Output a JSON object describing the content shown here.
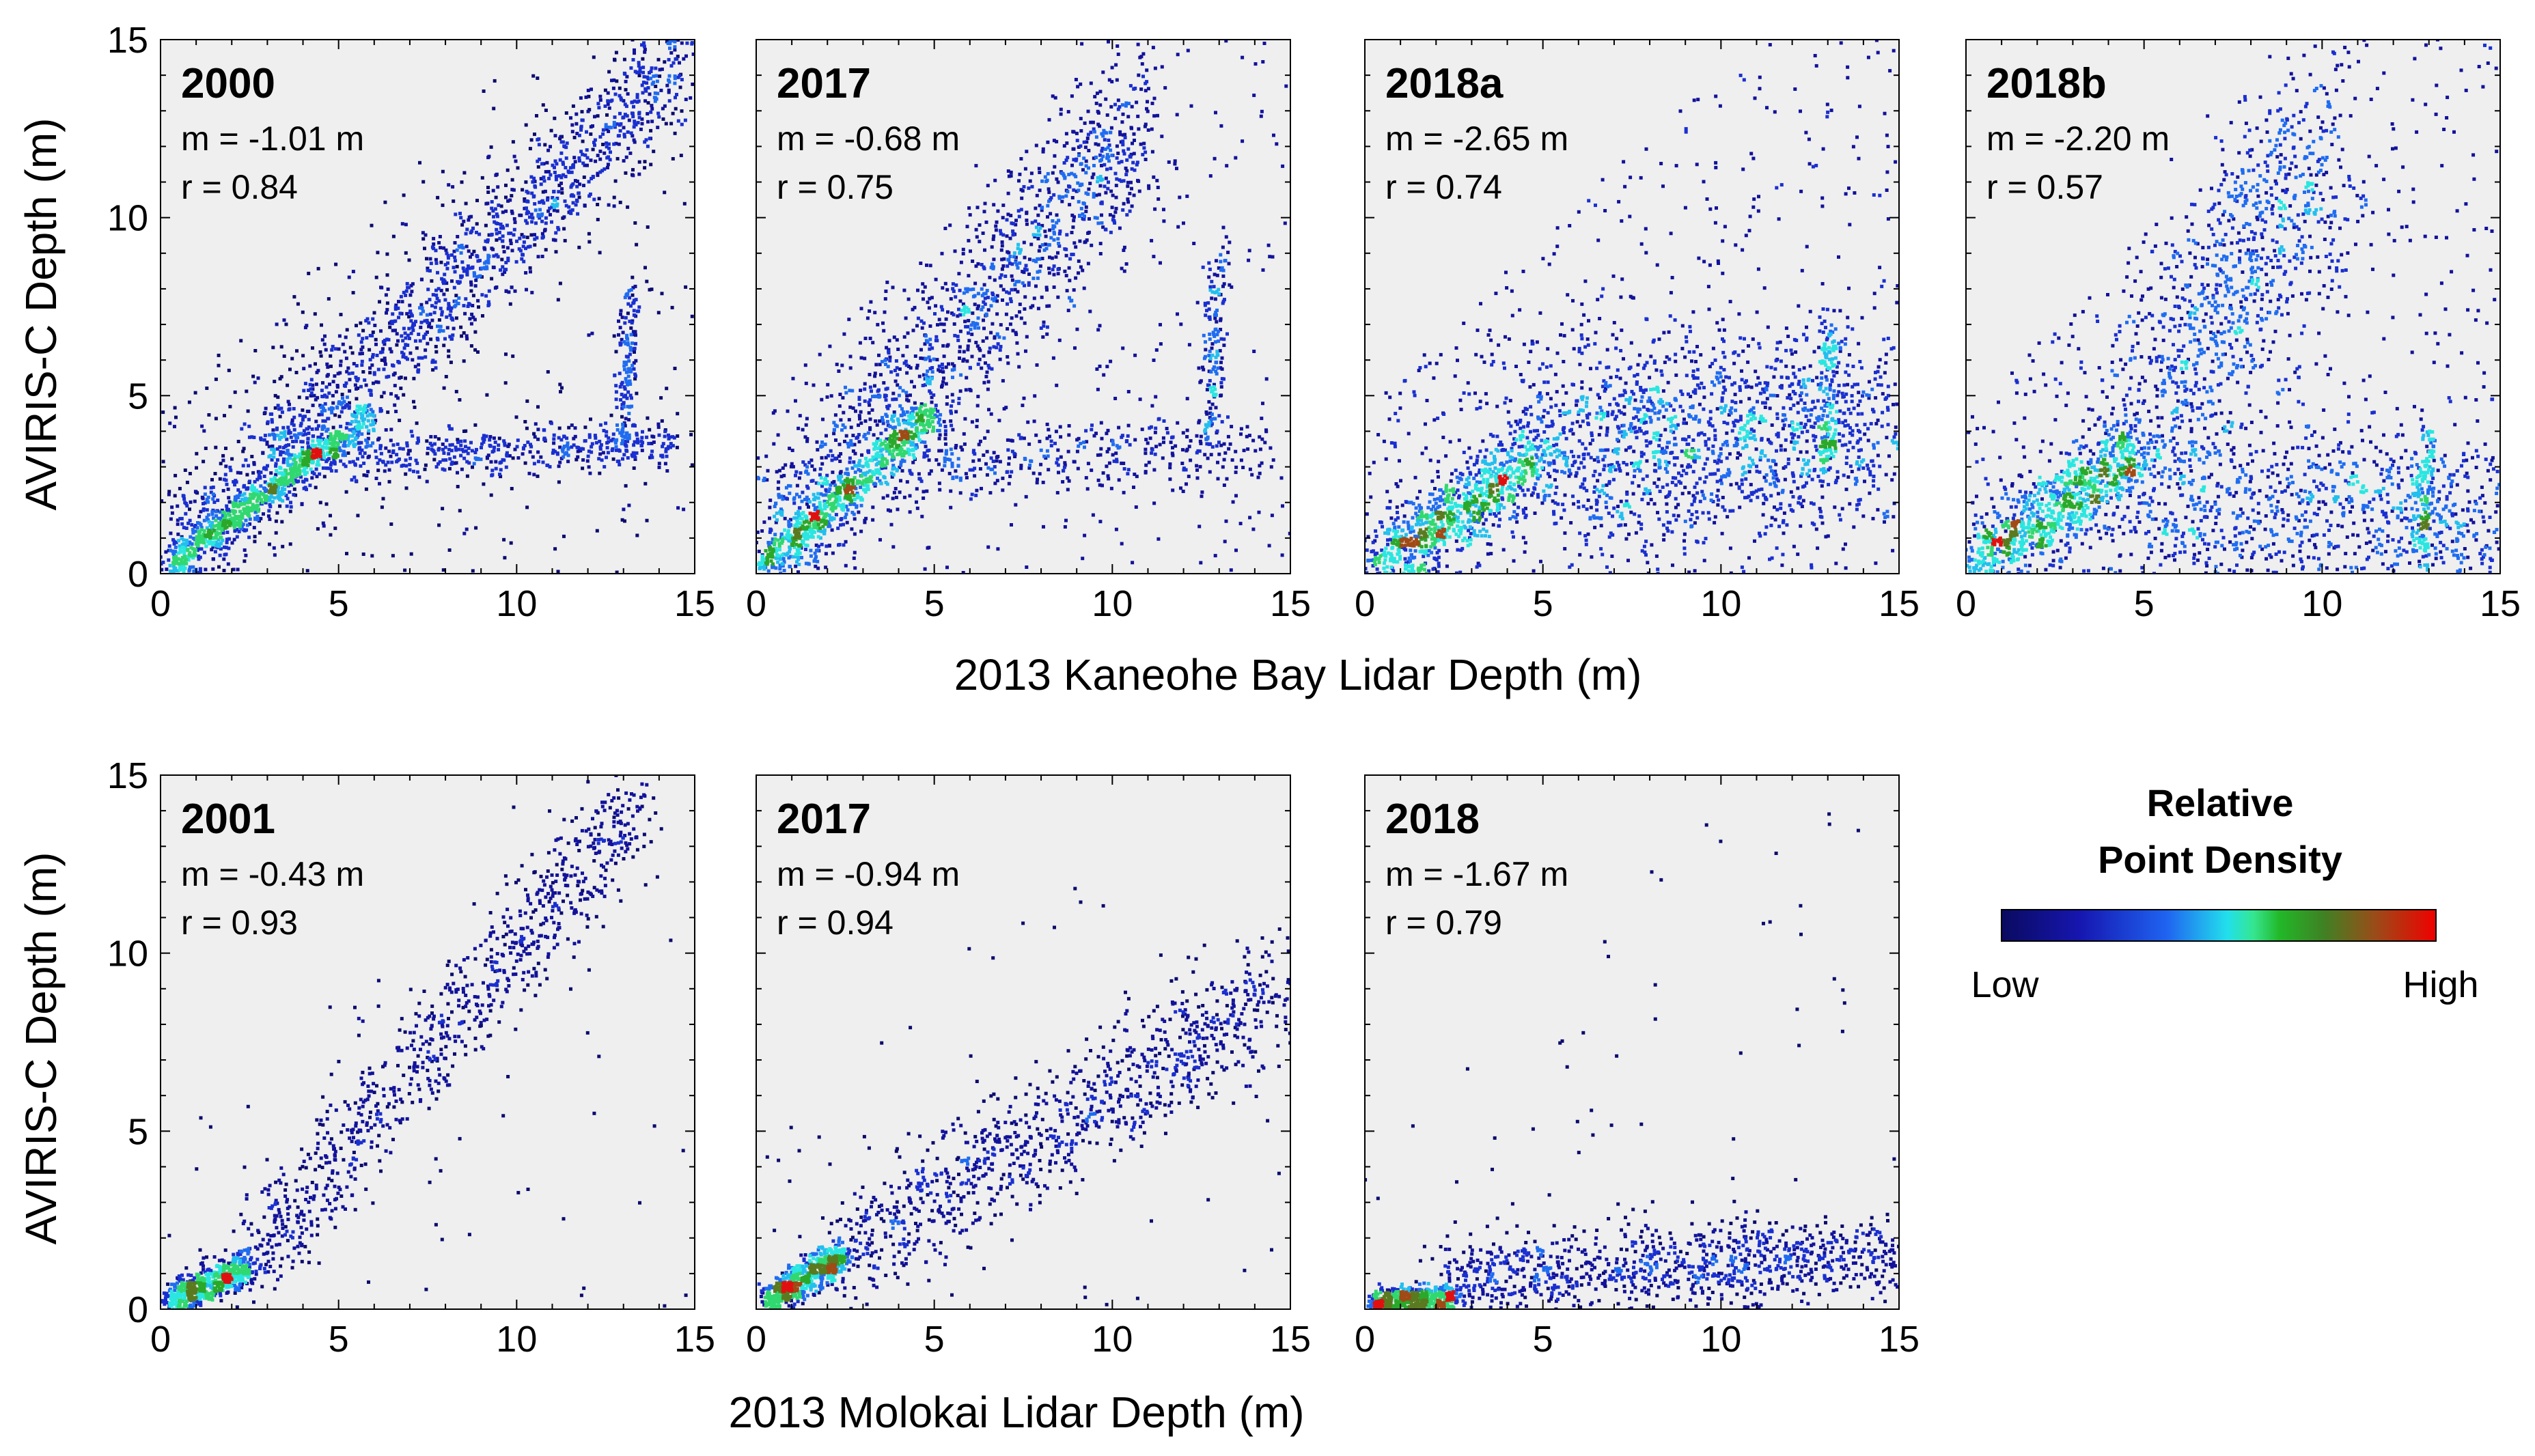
{
  "chart_data": [
    {
      "type": "scatter",
      "group": "Kaneohe Bay",
      "title": "2000",
      "m_text": "m = -1.01 m",
      "r_text": "r = 0.84",
      "xlabel": "2013 Kaneohe Bay Lidar Depth (m)",
      "ylabel": "AVIRIS-C Depth (m)",
      "xlim": [
        0,
        15
      ],
      "ylim": [
        0,
        15
      ],
      "xticks": [
        0,
        5,
        10,
        15
      ],
      "yticks": [
        0,
        5,
        10,
        15
      ],
      "clusters": [
        {
          "x0": 0.2,
          "y0": 0.2,
          "x1": 14.8,
          "y1": 14.6,
          "spread": 0.9,
          "count": 1700
        },
        {
          "x0": 3,
          "y0": 3.3,
          "x1": 14.5,
          "y1": 3.6,
          "spread": 0.35,
          "count": 500
        },
        {
          "x0": 13,
          "y0": 3.5,
          "x1": 13.2,
          "y1": 8,
          "spread": 0.3,
          "count": 160
        },
        {
          "x0": 0.2,
          "y0": 0.2,
          "x1": 6,
          "y1": 4.5,
          "spread": 0.25,
          "count": 700
        }
      ],
      "background_noise": 300
    },
    {
      "type": "scatter",
      "group": "Kaneohe Bay",
      "title": "2017",
      "m_text": "m = -0.68 m",
      "r_text": "r = 0.75",
      "xlim": [
        0,
        15
      ],
      "ylim": [
        0,
        15
      ],
      "xticks": [
        0,
        5,
        10,
        15
      ],
      "yticks": [
        0,
        5,
        10,
        15
      ],
      "clusters": [
        {
          "x0": 0.2,
          "y0": 0.2,
          "x1": 11,
          "y1": 13,
          "spread": 1.2,
          "count": 1500
        },
        {
          "x0": 4,
          "y0": 3.2,
          "x1": 14.5,
          "y1": 3.5,
          "spread": 0.5,
          "count": 350
        },
        {
          "x0": 12.8,
          "y0": 4,
          "x1": 13,
          "y1": 9,
          "spread": 0.35,
          "count": 150
        },
        {
          "x0": 0.2,
          "y0": 0.2,
          "x1": 5,
          "y1": 4.5,
          "spread": 0.3,
          "count": 600
        }
      ],
      "background_noise": 350
    },
    {
      "type": "scatter",
      "group": "Kaneohe Bay",
      "title": "2018a",
      "m_text": "m = -2.65 m",
      "r_text": "r = 0.74",
      "xlim": [
        0,
        15
      ],
      "ylim": [
        0,
        15
      ],
      "xticks": [
        0,
        5,
        10,
        15
      ],
      "yticks": [
        0,
        5,
        10,
        15
      ],
      "clusters": [
        {
          "x0": 0.3,
          "y0": 0.2,
          "x1": 5,
          "y1": 3.5,
          "spread": 0.6,
          "count": 900
        },
        {
          "x0": 5,
          "y0": 3.5,
          "x1": 14.5,
          "y1": 4,
          "spread": 1.6,
          "count": 1500
        },
        {
          "x0": 13,
          "y0": 3,
          "x1": 13,
          "y1": 7,
          "spread": 0.3,
          "count": 120
        }
      ],
      "background_noise": 450
    },
    {
      "type": "scatter",
      "group": "Kaneohe Bay",
      "title": "2018b",
      "m_text": "m = -2.20 m",
      "r_text": "r = 0.57",
      "xlim": [
        0,
        15
      ],
      "ylim": [
        0,
        15
      ],
      "xticks": [
        0,
        5,
        10,
        15
      ],
      "yticks": [
        0,
        5,
        10,
        15
      ],
      "clusters": [
        {
          "x0": 0.2,
          "y0": 0.2,
          "x1": 5,
          "y1": 3.5,
          "spread": 0.6,
          "count": 900
        },
        {
          "x0": 5,
          "y0": 4,
          "x1": 10,
          "y1": 12,
          "spread": 1.8,
          "count": 900
        },
        {
          "x0": 5,
          "y0": 2,
          "x1": 15,
          "y1": 1.5,
          "spread": 1.3,
          "count": 900
        },
        {
          "x0": 12.8,
          "y0": 0.5,
          "x1": 13,
          "y1": 4,
          "spread": 0.3,
          "count": 120
        }
      ],
      "background_noise": 450
    },
    {
      "type": "scatter",
      "group": "Molokai",
      "title": "2001",
      "m_text": "m = -0.43 m",
      "r_text": "r = 0.93",
      "xlabel": "2013 Molokai Lidar Depth (m)",
      "ylabel": "AVIRIS-C Depth (m)",
      "xlim": [
        0,
        15
      ],
      "ylim": [
        0,
        15
      ],
      "xticks": [
        0,
        5,
        10,
        15
      ],
      "yticks": [
        0,
        5,
        10,
        15
      ],
      "clusters": [
        {
          "x0": 0.2,
          "y0": 0.2,
          "x1": 2.5,
          "y1": 1.2,
          "spread": 0.25,
          "count": 600
        },
        {
          "x0": 2.5,
          "y0": 1.2,
          "x1": 13.5,
          "y1": 14.5,
          "spread": 0.8,
          "count": 900
        }
      ],
      "background_noise": 60
    },
    {
      "type": "scatter",
      "group": "Molokai",
      "title": "2017",
      "m_text": "m = -0.94 m",
      "r_text": "r = 0.94",
      "xlim": [
        0,
        15
      ],
      "ylim": [
        0,
        15
      ],
      "xticks": [
        0,
        5,
        10,
        15
      ],
      "yticks": [
        0,
        5,
        10,
        15
      ],
      "clusters": [
        {
          "x0": 0.2,
          "y0": 0.2,
          "x1": 2.5,
          "y1": 1.5,
          "spread": 0.25,
          "count": 600
        },
        {
          "x0": 2.5,
          "y0": 1.5,
          "x1": 15,
          "y1": 9,
          "spread": 0.9,
          "count": 1000
        }
      ],
      "background_noise": 60
    },
    {
      "type": "scatter",
      "group": "Molokai",
      "title": "2018",
      "m_text": "m = -1.67 m",
      "r_text": "r = 0.79",
      "xlim": [
        0,
        15
      ],
      "ylim": [
        0,
        15
      ],
      "xticks": [
        0,
        5,
        10,
        15
      ],
      "yticks": [
        0,
        5,
        10,
        15
      ],
      "clusters": [
        {
          "x0": 0.2,
          "y0": 0.2,
          "x1": 2.5,
          "y1": 0.3,
          "spread": 0.2,
          "count": 500
        },
        {
          "x0": 2,
          "y0": 0.8,
          "x1": 15,
          "y1": 1.5,
          "spread": 0.6,
          "count": 1000
        }
      ],
      "background_noise": 60
    }
  ],
  "legend": {
    "title_line1": "Relative",
    "title_line2": "Point Density",
    "low_label": "Low",
    "high_label": "High",
    "colors": [
      "#0a0a78",
      "#1a1ab4",
      "#1f5ff0",
      "#1ec8ec",
      "#2ee6e6",
      "#2ec832",
      "#3a8a2a",
      "#8a5a18",
      "#d8181a",
      "#ee0000"
    ]
  },
  "axis_labels": {
    "top_x": "2013 Kaneohe Bay Lidar Depth (m)",
    "bottom_x": "2013 Molokai Lidar Depth (m)",
    "y": "AVIRIS-C Depth (m)"
  },
  "colors": {
    "plot_background": "#efefef",
    "axis": "#000000",
    "low_density": "#0c0c7c"
  }
}
